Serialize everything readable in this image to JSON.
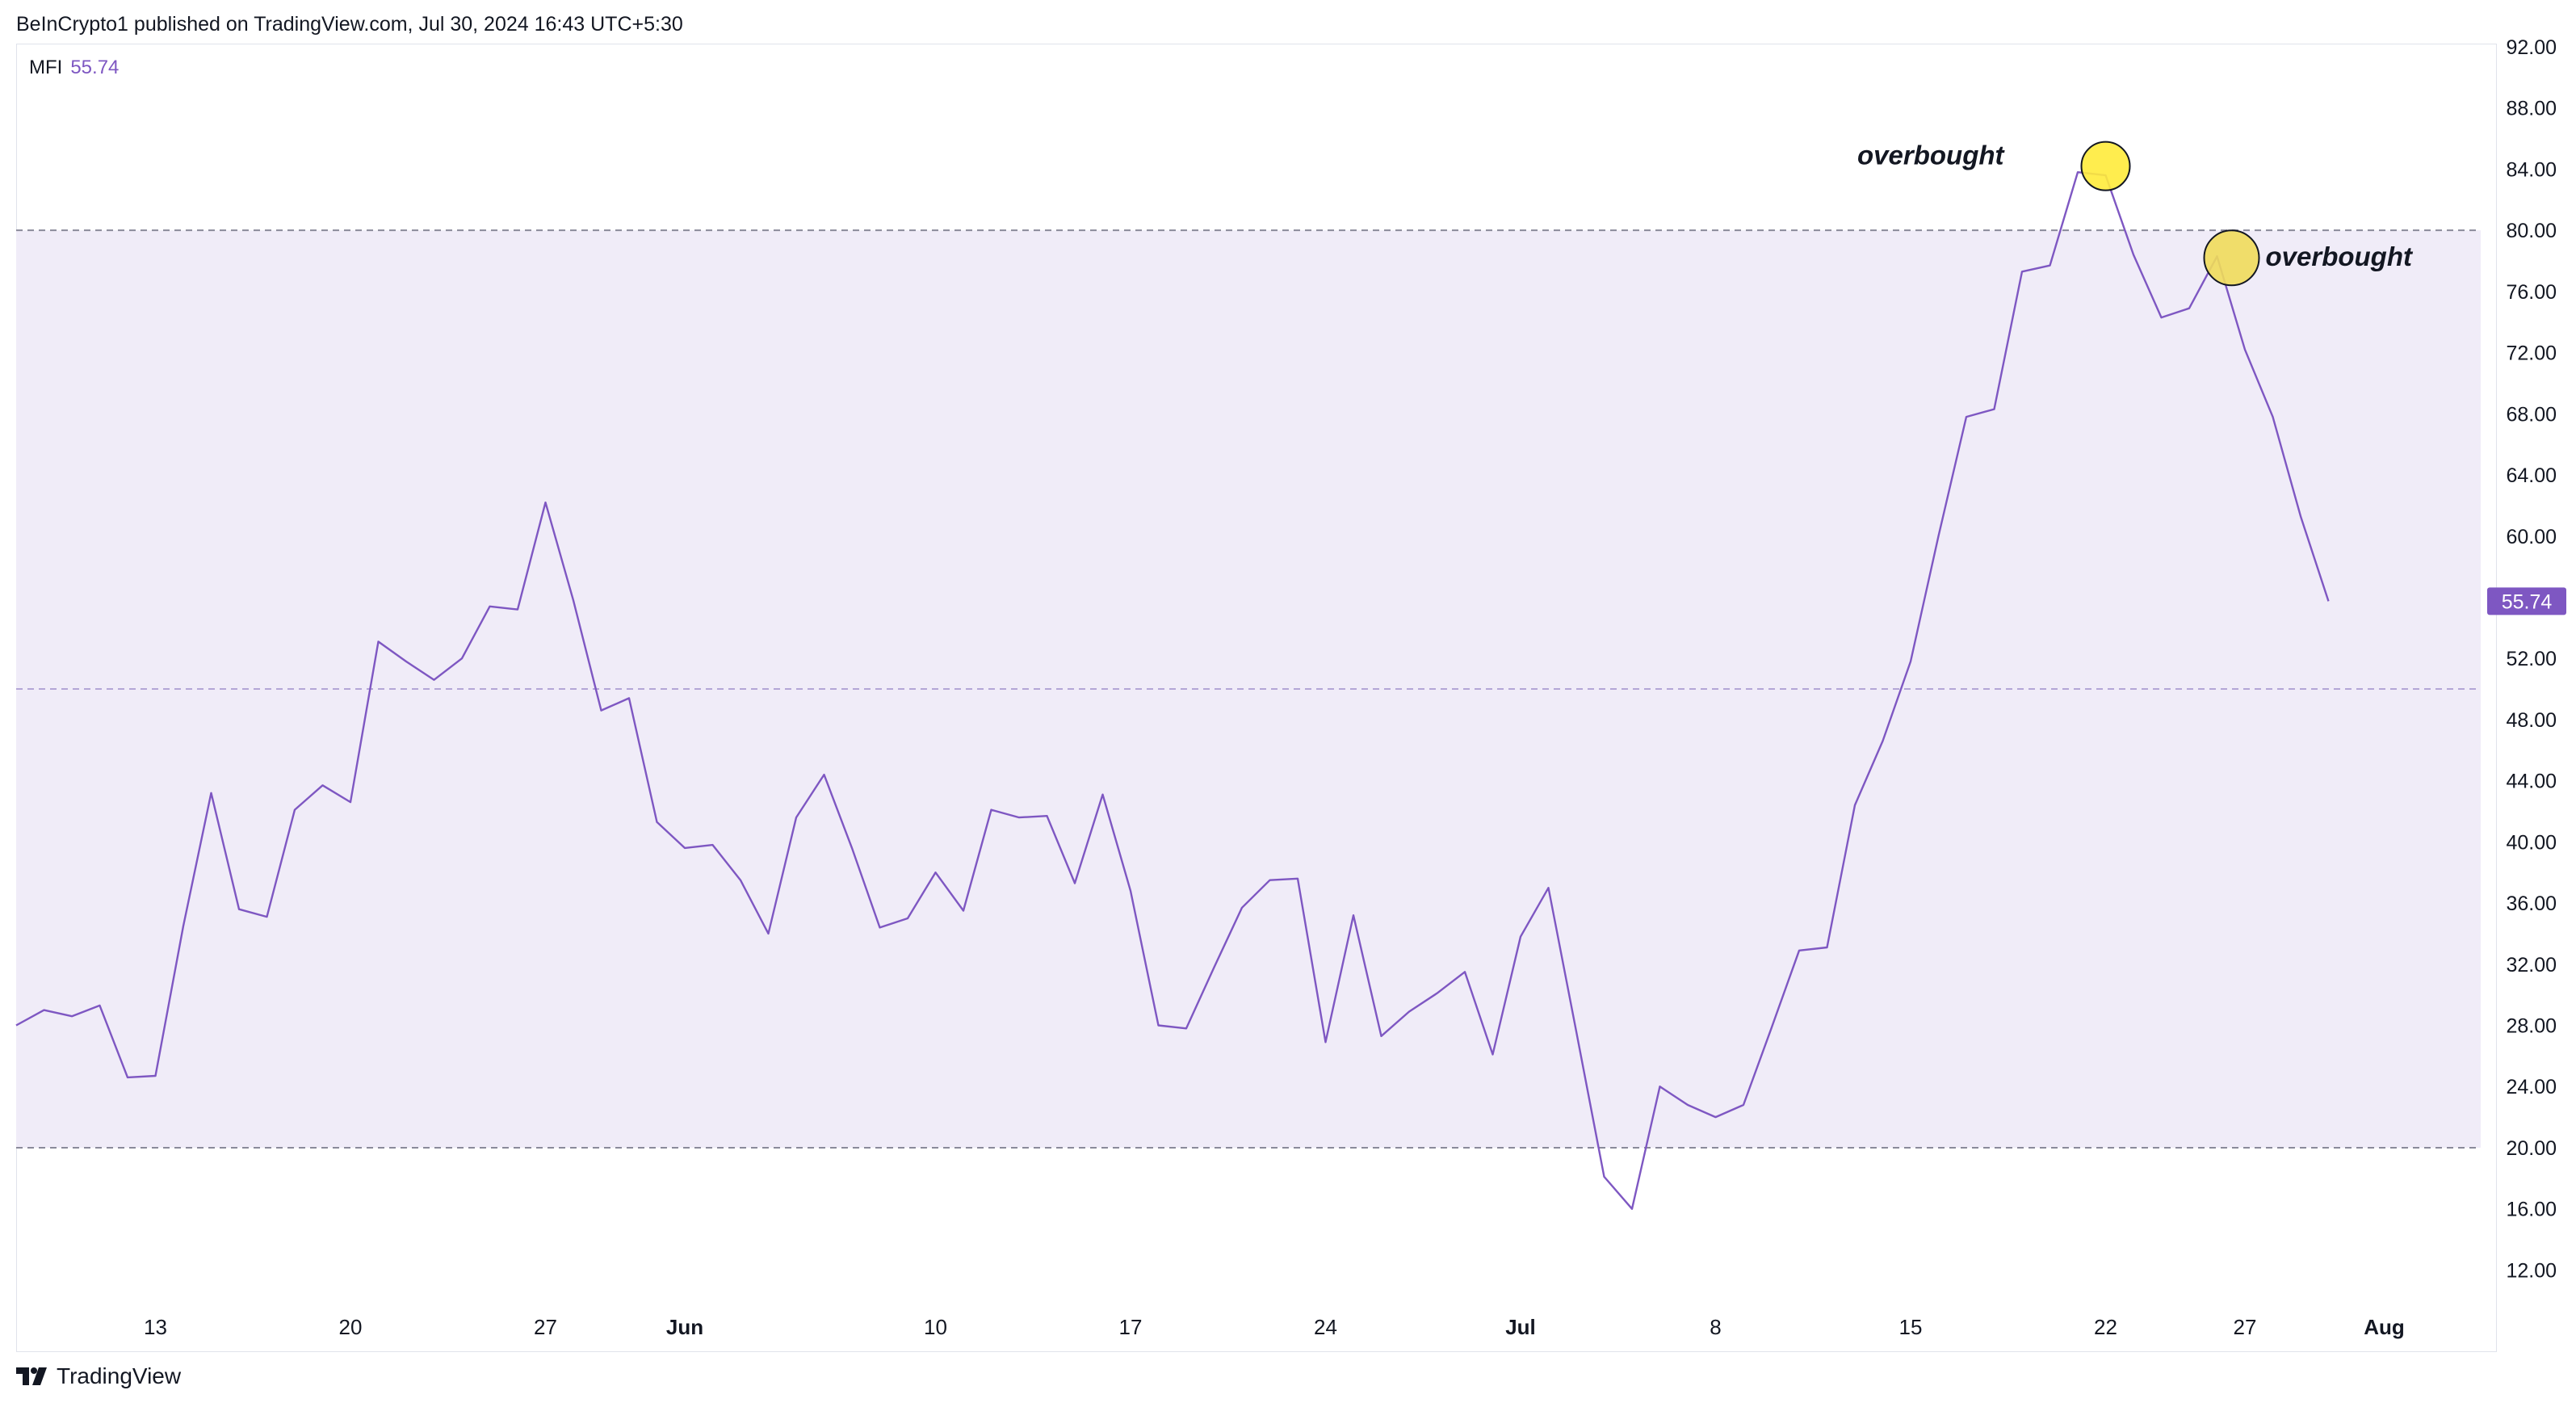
{
  "header": {
    "published": "BeInCrypto1 published on TradingView.com, Jul 30, 2024 16:43 UTC+5:30"
  },
  "indicator": {
    "name": "MFI",
    "value": "55.74"
  },
  "footer": {
    "brand": "TradingView"
  },
  "colors": {
    "line": "#7e57c2",
    "band": "#f0ecf8",
    "marker": "#ffeb3b",
    "marker2": "#f0dc5a",
    "price_tag": "#7e57c2"
  },
  "chart_data": {
    "type": "line",
    "title": "",
    "xlabel": "",
    "ylabel": "",
    "ylim": [
      8,
      93
    ],
    "y_ticks": [
      "92.00",
      "88.00",
      "84.00",
      "80.00",
      "76.00",
      "72.00",
      "68.00",
      "64.00",
      "60.00",
      "56.00",
      "52.00",
      "48.00",
      "44.00",
      "40.00",
      "36.00",
      "32.00",
      "28.00",
      "24.00",
      "20.00",
      "16.00",
      "12.00"
    ],
    "y_tick_values": [
      92,
      88,
      84,
      80,
      76,
      72,
      68,
      64,
      60,
      56,
      52,
      48,
      44,
      40,
      36,
      32,
      28,
      24,
      20,
      16,
      12
    ],
    "x_ticks": [
      {
        "label": "13",
        "index": 5
      },
      {
        "label": "20",
        "index": 12
      },
      {
        "label": "27",
        "index": 19
      },
      {
        "label": "Jun",
        "index": 24
      },
      {
        "label": "10",
        "index": 33
      },
      {
        "label": "17",
        "index": 40
      },
      {
        "label": "24",
        "index": 47
      },
      {
        "label": "Jul",
        "index": 54
      },
      {
        "label": "8",
        "index": 61
      },
      {
        "label": "15",
        "index": 68
      },
      {
        "label": "22",
        "index": 75
      },
      {
        "label": "27",
        "index": 80
      },
      {
        "label": "Aug",
        "index": 85
      }
    ],
    "band": {
      "upper": 80,
      "lower": 20,
      "middle": 50
    },
    "series": [
      {
        "values": [
          28.0,
          29.0,
          28.6,
          29.3,
          24.6,
          24.7,
          34.5,
          43.2,
          35.6,
          35.1,
          42.1,
          43.7,
          42.6,
          53.1,
          51.8,
          50.6,
          52.0,
          55.4,
          55.2,
          62.2,
          55.8,
          48.6,
          49.4,
          41.3,
          39.6,
          39.8,
          37.5,
          34.0,
          41.6,
          44.4,
          39.6,
          34.4,
          35.0,
          38.0,
          35.5,
          42.1,
          41.6,
          41.7,
          37.3,
          43.1,
          36.8,
          28.0,
          27.8,
          31.8,
          35.7,
          37.5,
          37.6,
          26.9,
          35.2,
          27.3,
          28.9,
          30.1,
          31.5,
          26.1,
          33.8,
          37.0,
          27.6,
          18.1,
          16.0,
          24.0,
          22.8,
          22.0,
          22.8,
          27.8,
          32.9,
          33.1,
          42.4,
          46.6,
          51.8,
          60.0,
          67.8,
          68.3,
          77.3,
          77.7,
          83.8,
          83.6,
          78.4,
          74.3,
          74.9,
          78.3,
          72.2,
          67.8,
          61.3,
          55.74
        ],
        "last_value_label": "55.74"
      }
    ],
    "annotations": [
      {
        "text": "overbought",
        "index": 75,
        "value": 84.2
      },
      {
        "text": "overbought",
        "index": 79,
        "value": 78.2
      }
    ]
  }
}
